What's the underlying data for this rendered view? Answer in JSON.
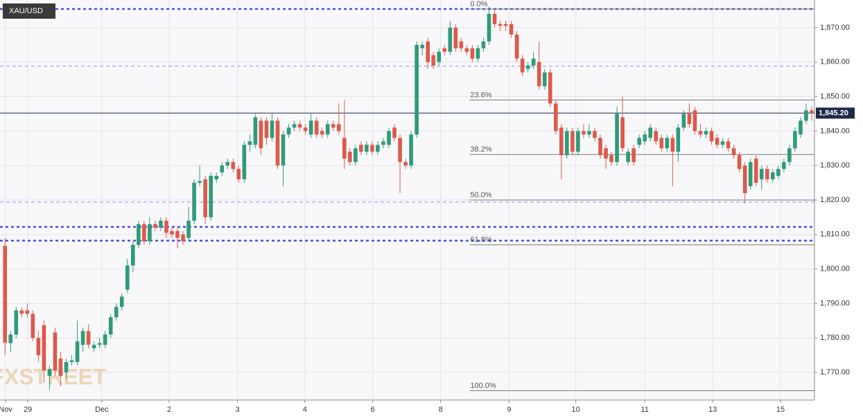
{
  "chart_data": {
    "type": "candlestick",
    "symbol": "XAU/USD",
    "watermark": "FXSTREET",
    "up_color": "#2f9a7a",
    "down_color": "#dc5a4b",
    "ylim": [
      1762,
      1878
    ],
    "xlim": [
      -0.9,
      145.5
    ],
    "grid": true,
    "yticks": [
      {
        "value": 1770,
        "label": "1,770.00"
      },
      {
        "value": 1780,
        "label": "1,780.00"
      },
      {
        "value": 1790,
        "label": "1,790.00"
      },
      {
        "value": 1800,
        "label": "1,800.00"
      },
      {
        "value": 1810,
        "label": "1,810.00"
      },
      {
        "value": 1820,
        "label": "1,820.00"
      },
      {
        "value": 1830,
        "label": "1,830.00"
      },
      {
        "value": 1840,
        "label": "1,840.00"
      },
      {
        "value": 1850,
        "label": "1,850.00"
      },
      {
        "value": 1860,
        "label": "1,860.00"
      },
      {
        "value": 1870,
        "label": "1,870.00"
      }
    ],
    "xticks": [
      {
        "value": 0.1,
        "label": "Nov"
      },
      {
        "value": 4.1,
        "label": "29"
      },
      {
        "value": 17.4,
        "label": "Dec"
      },
      {
        "value": 29.5,
        "label": "2"
      },
      {
        "value": 41.8,
        "label": "3"
      },
      {
        "value": 53.9,
        "label": "4"
      },
      {
        "value": 66.1,
        "label": "6"
      },
      {
        "value": 78.3,
        "label": "8"
      },
      {
        "value": 90.6,
        "label": "9"
      },
      {
        "value": 102.6,
        "label": "10"
      },
      {
        "value": 115,
        "label": "11"
      },
      {
        "value": 127.2,
        "label": "13"
      },
      {
        "value": 139.4,
        "label": "15"
      }
    ],
    "last_price": {
      "value": 1845.2,
      "label": "1,845.20"
    },
    "fib_x_start": 83.5,
    "fib_levels": [
      {
        "value": 1875.4,
        "label": "0.0%"
      },
      {
        "value": 1849,
        "label": "23.6%"
      },
      {
        "value": 1833.2,
        "label": "38.2%"
      },
      {
        "value": 1820,
        "label": "50.0%"
      },
      {
        "value": 1807,
        "label": "61.8%"
      },
      {
        "value": 1764.7,
        "label": "100.0%"
      }
    ],
    "level_lines": [
      {
        "value": 1875.4,
        "style": "bold"
      },
      {
        "value": 1858.8,
        "style": "thin"
      },
      {
        "value": 1819.4,
        "style": "thin"
      },
      {
        "value": 1812.2,
        "style": "bold"
      },
      {
        "value": 1808.2,
        "style": "bold"
      }
    ],
    "series": [
      {
        "name": "XAU/USD",
        "ohlc": [
          [
            1806.7,
            1809,
            1775,
            1778.6
          ],
          [
            1778.5,
            1782,
            1776,
            1781
          ],
          [
            1781,
            1789,
            1780,
            1788
          ],
          [
            1788,
            1789,
            1786,
            1787
          ],
          [
            1788,
            1790,
            1786,
            1787
          ],
          [
            1787,
            1788,
            1779,
            1780
          ],
          [
            1780,
            1782,
            1773,
            1775
          ],
          [
            1783.7,
            1785,
            1767,
            1770.6
          ],
          [
            1769,
            1772,
            1765,
            1771
          ],
          [
            1781.6,
            1783,
            1769,
            1770.6
          ],
          [
            1774,
            1776,
            1766,
            1769
          ],
          [
            1770,
            1774,
            1768,
            1773
          ],
          [
            1773,
            1775,
            1772,
            1773.5
          ],
          [
            1773,
            1785,
            1772,
            1779
          ],
          [
            1778,
            1783,
            1776,
            1782
          ],
          [
            1782,
            1784,
            1777,
            1778
          ],
          [
            1777,
            1779,
            1776,
            1778
          ],
          [
            1778,
            1780,
            1777,
            1778.5
          ],
          [
            1778,
            1782,
            1777,
            1781
          ],
          [
            1781,
            1787,
            1780,
            1786
          ],
          [
            1786,
            1790,
            1785,
            1789
          ],
          [
            1789,
            1793,
            1788,
            1792
          ],
          [
            1794,
            1803,
            1793,
            1801
          ],
          [
            1801,
            1808,
            1799,
            1807
          ],
          [
            1807,
            1814,
            1806,
            1813
          ],
          [
            1813,
            1814,
            1807,
            1808
          ],
          [
            1808,
            1815,
            1807,
            1813
          ],
          [
            1813,
            1814,
            1811,
            1812
          ],
          [
            1812,
            1815,
            1811,
            1814
          ],
          [
            1814,
            1815,
            1809,
            1810.5
          ],
          [
            1811,
            1812,
            1809,
            1810
          ],
          [
            1811,
            1812,
            1806,
            1809
          ],
          [
            1810,
            1811,
            1807,
            1808
          ],
          [
            1809,
            1818,
            1808,
            1814
          ],
          [
            1814,
            1826,
            1813,
            1825
          ],
          [
            1825,
            1830,
            1824,
            1825.5
          ],
          [
            1826,
            1827,
            1813,
            1815
          ],
          [
            1815,
            1828,
            1814,
            1827
          ],
          [
            1826,
            1828,
            1825,
            1827
          ],
          [
            1828,
            1831,
            1827,
            1830
          ],
          [
            1830,
            1832,
            1829,
            1831
          ],
          [
            1831,
            1832,
            1828,
            1829
          ],
          [
            1829,
            1830,
            1825,
            1826
          ],
          [
            1826,
            1837,
            1825,
            1836
          ],
          [
            1836,
            1839,
            1834,
            1837
          ],
          [
            1836,
            1845,
            1835,
            1844
          ],
          [
            1843,
            1844,
            1833,
            1835
          ],
          [
            1843,
            1844,
            1836,
            1838
          ],
          [
            1838,
            1845,
            1837,
            1843
          ],
          [
            1843,
            1844,
            1829,
            1830
          ],
          [
            1830,
            1840,
            1824,
            1839
          ],
          [
            1839,
            1842,
            1838,
            1841
          ],
          [
            1841,
            1843,
            1840,
            1842
          ],
          [
            1842,
            1843,
            1840,
            1841
          ],
          [
            1841,
            1842,
            1839,
            1840
          ],
          [
            1839,
            1845,
            1838,
            1843
          ],
          [
            1843,
            1844,
            1838,
            1839
          ],
          [
            1840,
            1841,
            1838,
            1839
          ],
          [
            1839,
            1843,
            1838,
            1842
          ],
          [
            1842,
            1843,
            1840,
            1841
          ],
          [
            1842,
            1848,
            1839,
            1840
          ],
          [
            1838,
            1849,
            1829,
            1832
          ],
          [
            1834,
            1835,
            1830,
            1831
          ],
          [
            1831,
            1836,
            1830,
            1835
          ],
          [
            1836,
            1837,
            1833,
            1834
          ],
          [
            1834,
            1837,
            1833,
            1836
          ],
          [
            1836,
            1837,
            1833,
            1834
          ],
          [
            1834,
            1837,
            1833,
            1836
          ],
          [
            1836,
            1838,
            1835,
            1837
          ],
          [
            1836,
            1841,
            1835,
            1840
          ],
          [
            1841,
            1842,
            1837,
            1838
          ],
          [
            1838,
            1839,
            1822,
            1831
          ],
          [
            1831,
            1832,
            1829,
            1830
          ],
          [
            1830,
            1840,
            1829,
            1839
          ],
          [
            1839,
            1866,
            1838,
            1865
          ],
          [
            1864,
            1866,
            1862,
            1865
          ],
          [
            1866,
            1867,
            1858,
            1860
          ],
          [
            1862,
            1863,
            1858,
            1859
          ],
          [
            1860,
            1864,
            1859,
            1863
          ],
          [
            1864,
            1865,
            1862,
            1863
          ],
          [
            1863,
            1872,
            1862,
            1870
          ],
          [
            1870,
            1871,
            1863,
            1864
          ],
          [
            1866,
            1867,
            1863,
            1864
          ],
          [
            1864,
            1865,
            1862,
            1863
          ],
          [
            1864,
            1865,
            1860,
            1861
          ],
          [
            1861,
            1865,
            1860,
            1864
          ],
          [
            1864,
            1867,
            1863,
            1866
          ],
          [
            1866,
            1876,
            1865,
            1874
          ],
          [
            1874,
            1875,
            1870,
            1871
          ],
          [
            1871,
            1872,
            1869,
            1870.5
          ],
          [
            1871,
            1872,
            1869,
            1870.5
          ],
          [
            1871,
            1872,
            1867,
            1868
          ],
          [
            1868,
            1869,
            1860,
            1861
          ],
          [
            1861,
            1862,
            1856,
            1857
          ],
          [
            1858,
            1860,
            1857,
            1859
          ],
          [
            1859,
            1863,
            1858,
            1861
          ],
          [
            1860,
            1866,
            1852,
            1853
          ],
          [
            1853,
            1858,
            1852,
            1857
          ],
          [
            1857,
            1858,
            1847,
            1848
          ],
          [
            1848,
            1849,
            1839,
            1840
          ],
          [
            1841,
            1842,
            1826,
            1833
          ],
          [
            1833,
            1841,
            1832,
            1840
          ],
          [
            1840,
            1841,
            1833,
            1834
          ],
          [
            1834,
            1841,
            1833,
            1840
          ],
          [
            1840,
            1842,
            1838,
            1839
          ],
          [
            1839,
            1842,
            1838,
            1840
          ],
          [
            1840,
            1841,
            1837,
            1838
          ],
          [
            1838,
            1839,
            1832,
            1833
          ],
          [
            1835,
            1836,
            1829,
            1832
          ],
          [
            1833,
            1834,
            1830,
            1831
          ],
          [
            1831,
            1847,
            1830,
            1845
          ],
          [
            1844,
            1850,
            1834,
            1835
          ],
          [
            1831,
            1835,
            1830,
            1834
          ],
          [
            1835,
            1836,
            1830,
            1831
          ],
          [
            1836,
            1839,
            1835,
            1838
          ],
          [
            1837,
            1840,
            1836,
            1839
          ],
          [
            1838,
            1842,
            1837,
            1841
          ],
          [
            1840,
            1841,
            1836,
            1837
          ],
          [
            1838,
            1839,
            1834,
            1835
          ],
          [
            1835,
            1839,
            1834,
            1838
          ],
          [
            1838,
            1839,
            1824,
            1834
          ],
          [
            1834,
            1842,
            1831,
            1841
          ],
          [
            1841,
            1846,
            1840,
            1845
          ],
          [
            1845,
            1848,
            1841,
            1842
          ],
          [
            1846,
            1847,
            1839,
            1840
          ],
          [
            1840,
            1842,
            1838,
            1839
          ],
          [
            1839,
            1841,
            1838,
            1840
          ],
          [
            1840,
            1841,
            1836,
            1837
          ],
          [
            1838,
            1839,
            1835,
            1836
          ],
          [
            1836,
            1838,
            1835,
            1837
          ],
          [
            1837,
            1838,
            1834,
            1835
          ],
          [
            1835,
            1836,
            1832,
            1833
          ],
          [
            1833,
            1834,
            1828,
            1829
          ],
          [
            1830,
            1831,
            1819,
            1822
          ],
          [
            1824,
            1832,
            1823,
            1831
          ],
          [
            1832,
            1833,
            1824,
            1825
          ],
          [
            1826,
            1830,
            1823,
            1829
          ],
          [
            1829,
            1830,
            1825,
            1826
          ],
          [
            1826,
            1829,
            1825,
            1828
          ],
          [
            1827,
            1830,
            1826,
            1829
          ],
          [
            1829,
            1832,
            1828,
            1831
          ],
          [
            1831,
            1836,
            1830,
            1835
          ],
          [
            1835,
            1841,
            1834,
            1840
          ],
          [
            1839,
            1844,
            1838,
            1843
          ],
          [
            1843,
            1848,
            1842,
            1846
          ],
          [
            1846,
            1847,
            1843,
            1845.2
          ]
        ]
      }
    ]
  }
}
